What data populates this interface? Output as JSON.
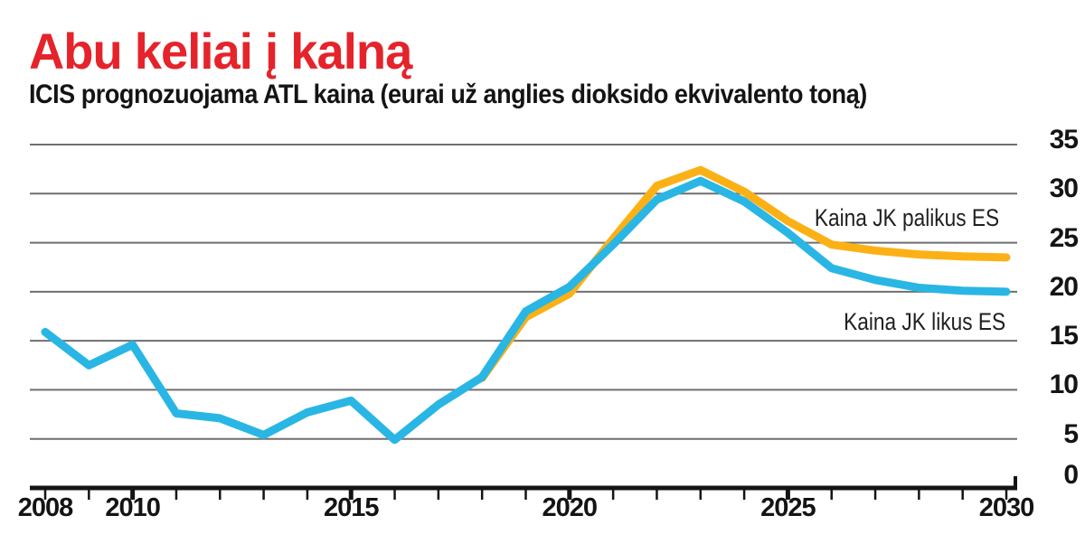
{
  "title": "Abu keliai į kalną",
  "subtitle": "ICIS prognozuojama ATL kaina (eurai už anglies dioksido ekvivalento toną)",
  "colors": {
    "title_red": "#e5232b",
    "line_blue": "#29b6e4",
    "line_orange": "#fbb116",
    "gridline_gray": "#6f6f6f",
    "axis_black": "#141414",
    "text_black": "#141414"
  },
  "chart_data": {
    "type": "line",
    "x_years": [
      2008,
      2009,
      2010,
      2011,
      2012,
      2013,
      2014,
      2015,
      2016,
      2017,
      2018,
      2019,
      2020,
      2021,
      2022,
      2023,
      2024,
      2025,
      2026,
      2027,
      2028,
      2029,
      2030
    ],
    "series": [
      {
        "name": "Kaina JK likus ES",
        "color": "#29b6e4",
        "start_year": 2008,
        "values": [
          15.9,
          12.5,
          14.6,
          7.6,
          7.1,
          5.4,
          7.7,
          8.9,
          4.9,
          8.5,
          11.3,
          18.0,
          20.5,
          24.8,
          29.4,
          31.3,
          29.2,
          26.0,
          22.4,
          21.2,
          20.4,
          20.1,
          20.0
        ]
      },
      {
        "name": "Kaina JK palikus ES",
        "color": "#fbb116",
        "start_year": 2018,
        "values": [
          11.2,
          17.4,
          19.8,
          25.4,
          30.8,
          32.4,
          30.2,
          27.2,
          24.8,
          24.2,
          23.8,
          23.6,
          23.5
        ]
      }
    ],
    "title": "Abu keliai į kalną",
    "subtitle": "ICIS prognozuojama ATL kaina (eurai už anglies dioksido ekvivalento toną)",
    "xlabel": "",
    "ylabel": "eurai už anglies dioksido ekvivalento toną",
    "ylim": [
      0,
      35
    ],
    "yticks": [
      0,
      5,
      10,
      15,
      20,
      25,
      30,
      35
    ],
    "xticks_labeled": [
      2008,
      2010,
      2015,
      2020,
      2025,
      2030
    ],
    "xticks_major": [
      2010,
      2015,
      2020,
      2025
    ],
    "grid": true,
    "legend_position": "labels-near-lines-right"
  }
}
